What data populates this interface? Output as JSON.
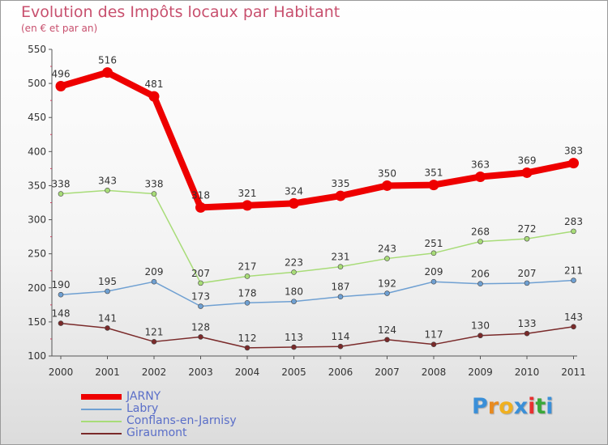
{
  "chart_data": {
    "type": "line",
    "title": "Evolution des Impôts locaux par Habitant",
    "subtitle": "(en € et par an)",
    "x": [
      "2000",
      "2001",
      "2002",
      "2003",
      "2004",
      "2005",
      "2006",
      "2007",
      "2008",
      "2009",
      "2010",
      "2011"
    ],
    "ylim": [
      100,
      550
    ],
    "yticks": [
      "100",
      "150",
      "200",
      "250",
      "300",
      "350",
      "400",
      "450",
      "500",
      "550"
    ],
    "grid": false,
    "legend_position": "bottom-left",
    "series": [
      {
        "name": "JARNY",
        "values": [
          496,
          516,
          481,
          318,
          321,
          324,
          335,
          350,
          351,
          363,
          369,
          383
        ],
        "color": "#ee0000"
      },
      {
        "name": "Labry",
        "values": [
          190,
          195,
          209,
          173,
          178,
          180,
          187,
          192,
          209,
          206,
          207,
          211
        ],
        "color": "#6fa0d2"
      },
      {
        "name": "Conflans-en-Jarnisy",
        "values": [
          338,
          343,
          338,
          207,
          217,
          223,
          231,
          243,
          251,
          268,
          272,
          283
        ],
        "color": "#a8dc78"
      },
      {
        "name": "Giraumont",
        "values": [
          148,
          141,
          121,
          128,
          112,
          113,
          114,
          124,
          117,
          130,
          133,
          143
        ],
        "color": "#7a2a2a"
      }
    ]
  },
  "logo": {
    "letters": [
      "P",
      "r",
      "o",
      "x",
      "i",
      "t",
      "i"
    ],
    "colors": [
      "#3a8fd8",
      "#e88a20",
      "#f0b020",
      "#3a8fd8",
      "#e83030",
      "#3aa83a",
      "#3a8fd8"
    ]
  }
}
